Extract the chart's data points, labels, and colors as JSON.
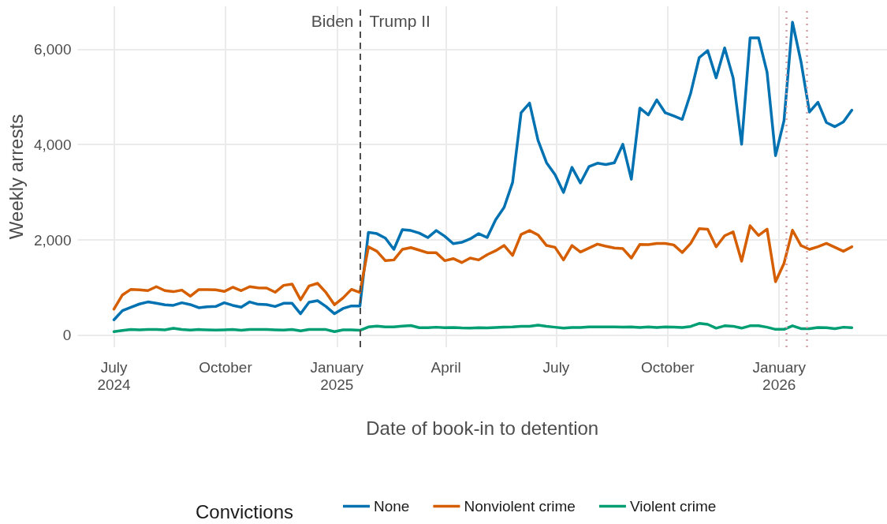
{
  "chart_data": {
    "type": "line",
    "xlabel": "Date of book-in to detention",
    "ylabel": "Weekly arrests",
    "legend_title": "Convictions",
    "x": [
      "2024-07-01",
      "2024-07-08",
      "2024-07-15",
      "2024-07-22",
      "2024-07-29",
      "2024-08-05",
      "2024-08-12",
      "2024-08-19",
      "2024-08-26",
      "2024-09-02",
      "2024-09-09",
      "2024-09-16",
      "2024-09-23",
      "2024-09-30",
      "2024-10-07",
      "2024-10-14",
      "2024-10-21",
      "2024-10-28",
      "2024-11-04",
      "2024-11-11",
      "2024-11-18",
      "2024-11-25",
      "2024-12-02",
      "2024-12-09",
      "2024-12-16",
      "2024-12-23",
      "2024-12-30",
      "2025-01-06",
      "2025-01-13",
      "2025-01-20",
      "2025-01-27",
      "2025-02-03",
      "2025-02-10",
      "2025-02-17",
      "2025-02-24",
      "2025-03-03",
      "2025-03-10",
      "2025-03-17",
      "2025-03-24",
      "2025-03-31",
      "2025-04-07",
      "2025-04-14",
      "2025-04-21",
      "2025-04-28",
      "2025-05-05",
      "2025-05-12",
      "2025-05-19",
      "2025-05-26",
      "2025-06-02",
      "2025-06-09",
      "2025-06-16",
      "2025-06-23",
      "2025-06-30",
      "2025-07-07",
      "2025-07-14",
      "2025-07-21",
      "2025-07-28",
      "2025-08-04",
      "2025-08-11",
      "2025-08-18",
      "2025-08-25",
      "2025-09-01",
      "2025-09-08",
      "2025-09-15",
      "2025-09-22",
      "2025-09-29",
      "2025-10-06",
      "2025-10-13",
      "2025-10-20",
      "2025-10-27",
      "2025-11-03",
      "2025-11-10",
      "2025-11-17",
      "2025-11-24",
      "2025-12-01",
      "2025-12-08",
      "2025-12-15",
      "2025-12-22",
      "2025-12-29",
      "2026-01-05",
      "2026-01-12",
      "2026-01-19",
      "2026-01-26",
      "2026-02-02",
      "2026-02-09",
      "2026-02-16",
      "2026-02-23",
      "2026-03-02"
    ],
    "series": [
      {
        "name": "None",
        "color": "#0072b2",
        "values": [
          325,
          518,
          589,
          656,
          700,
          672,
          640,
          628,
          683,
          645,
          578,
          600,
          605,
          683,
          628,
          589,
          700,
          650,
          645,
          605,
          672,
          672,
          452,
          694,
          727,
          605,
          452,
          562,
          616,
          616,
          2160,
          2132,
          2039,
          1802,
          2215,
          2198,
          2143,
          2050,
          2198,
          2077,
          1923,
          1951,
          2022,
          2132,
          2050,
          2424,
          2683,
          3207,
          4667,
          4871,
          4088,
          3620,
          3372,
          2997,
          3521,
          3196,
          3537,
          3609,
          3582,
          3620,
          4006,
          3273,
          4766,
          4623,
          4937,
          4667,
          4601,
          4529,
          5080,
          5824,
          5972,
          5400,
          6028,
          5400,
          4006,
          6237,
          6237,
          5521,
          3769,
          4501,
          6567,
          5741,
          4683,
          4888,
          4463,
          4375,
          4474,
          4722
        ]
      },
      {
        "name": "Nonviolent crime",
        "color": "#d55e00",
        "values": [
          550,
          848,
          964,
          953,
          937,
          1020,
          937,
          915,
          948,
          821,
          959,
          959,
          953,
          920,
          1008,
          937,
          1020,
          997,
          992,
          904,
          1047,
          1075,
          744,
          1036,
          1091,
          898,
          640,
          782,
          964,
          898,
          1857,
          1763,
          1565,
          1581,
          1802,
          1840,
          1785,
          1730,
          1730,
          1565,
          1609,
          1526,
          1620,
          1581,
          1691,
          1774,
          1884,
          1675,
          2116,
          2198,
          2105,
          1884,
          1846,
          1581,
          1884,
          1747,
          1830,
          1912,
          1868,
          1830,
          1818,
          1620,
          1906,
          1900,
          1928,
          1928,
          1895,
          1736,
          1928,
          2237,
          2226,
          1857,
          2088,
          2171,
          1554,
          2298,
          2094,
          2226,
          1124,
          1510,
          2204,
          1884,
          1802,
          1857,
          1928,
          1846,
          1763,
          1857
        ]
      },
      {
        "name": "Violent crime",
        "color": "#009e73",
        "values": [
          77,
          100,
          121,
          115,
          121,
          121,
          115,
          148,
          121,
          110,
          121,
          115,
          110,
          115,
          121,
          105,
          121,
          121,
          121,
          115,
          110,
          121,
          95,
          121,
          121,
          121,
          77,
          115,
          115,
          105,
          176,
          193,
          176,
          176,
          193,
          204,
          160,
          160,
          170,
          160,
          165,
          155,
          150,
          160,
          155,
          165,
          170,
          176,
          190,
          190,
          215,
          190,
          170,
          150,
          165,
          165,
          176,
          176,
          176,
          176,
          170,
          176,
          165,
          176,
          165,
          176,
          170,
          165,
          185,
          250,
          230,
          150,
          200,
          190,
          150,
          200,
          200,
          170,
          125,
          125,
          200,
          140,
          140,
          165,
          160,
          140,
          170,
          160
        ]
      }
    ],
    "xlim": [
      "2024-06-01",
      "2026-03-31"
    ],
    "xticks": [
      {
        "value": "2024-07-01",
        "label": "July\n2024"
      },
      {
        "value": "2024-10-01",
        "label": "October"
      },
      {
        "value": "2025-01-01",
        "label": "January\n2025"
      },
      {
        "value": "2025-04-01",
        "label": "April"
      },
      {
        "value": "2025-07-01",
        "label": "July"
      },
      {
        "value": "2025-10-01",
        "label": "October"
      },
      {
        "value": "2026-01-01",
        "label": "January\n2026"
      }
    ],
    "ylim": [
      -250,
      6900
    ],
    "yticks": [
      {
        "value": 0,
        "label": "0"
      },
      {
        "value": 2000,
        "label": "2,000"
      },
      {
        "value": 4000,
        "label": "4,000"
      },
      {
        "value": 6000,
        "label": "6,000"
      }
    ],
    "ref_lines": [
      {
        "axis": "x",
        "value": "2025-01-20",
        "label": null,
        "color": "#4d4d4d",
        "line_style": "dashed"
      },
      {
        "axis": "x",
        "value": "2026-01-07",
        "label": null,
        "color": "#d4a0a6",
        "line_style": "dotted"
      },
      {
        "axis": "x",
        "value": "2026-01-24",
        "label": null,
        "color": "#d4a0a6",
        "line_style": "dotted"
      }
    ],
    "annotations": [
      {
        "text": "Biden",
        "x": "2025-01-20",
        "y": 6600
      },
      {
        "text": "Trump II",
        "x": "2025-01-20",
        "y": 6600
      }
    ],
    "grid": true,
    "legend": "bottom",
    "marker": "none",
    "line_style": "solid"
  }
}
